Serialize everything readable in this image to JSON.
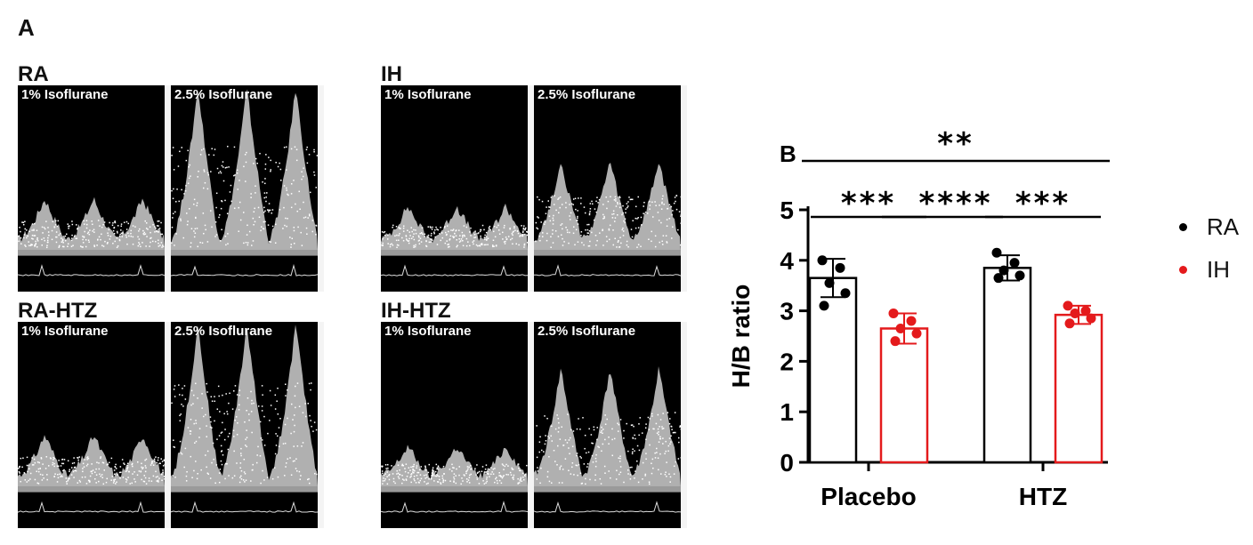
{
  "panel_a": {
    "letter": "A",
    "groups": [
      {
        "title": "RA",
        "low_label": "1% Isoflurane",
        "high_label": "2.5% Isoflurane",
        "low_amp": 0.22,
        "high_amp": 0.82
      },
      {
        "title": "IH",
        "low_label": "1% Isoflurane",
        "high_label": "2.5% Isoflurane",
        "low_amp": 0.18,
        "high_amp": 0.42
      },
      {
        "title": "RA-HTZ",
        "low_label": "1% Isoflurane",
        "high_label": "2.5% Isoflurane",
        "low_amp": 0.22,
        "high_amp": 0.82
      },
      {
        "title": "IH-HTZ",
        "low_label": "1% Isoflurane",
        "high_label": "2.5% Isoflurane",
        "low_amp": 0.16,
        "high_amp": 0.58
      }
    ]
  },
  "panel_b": {
    "letter": "B"
  },
  "chart_data": {
    "type": "bar",
    "categories": [
      "Placebo",
      "HTZ"
    ],
    "ylabel": "H/B ratio",
    "xlabel": "",
    "ylim": [
      0,
      5
    ],
    "yticks": [
      "0",
      "1",
      "2",
      "3",
      "4",
      "5"
    ],
    "series": [
      {
        "name": "RA",
        "color": "#000000",
        "values": [
          3.65,
          3.85
        ],
        "sd": [
          0.38,
          0.25
        ],
        "points": [
          [
            4.0,
            3.85,
            3.55,
            3.35,
            3.1
          ],
          [
            4.15,
            3.95,
            3.8,
            3.7,
            3.65
          ]
        ]
      },
      {
        "name": "IH",
        "color": "#e41a1c",
        "values": [
          2.65,
          2.92
        ],
        "sd": [
          0.3,
          0.18
        ],
        "points": [
          [
            2.95,
            2.8,
            2.65,
            2.55,
            2.4
          ],
          [
            3.1,
            3.0,
            2.95,
            2.85,
            2.75
          ]
        ]
      }
    ],
    "significance": [
      {
        "from": "Placebo-RA",
        "to": "Placebo-IH",
        "label": "***"
      },
      {
        "from": "Placebo-IH",
        "to": "HTZ-RA",
        "label": "****"
      },
      {
        "from": "HTZ-RA",
        "to": "HTZ-IH",
        "label": "***"
      },
      {
        "from": "Placebo-RA",
        "to": "HTZ-IH",
        "label": "**"
      }
    ],
    "legend": [
      "RA",
      "IH"
    ],
    "legend_position": "right"
  }
}
